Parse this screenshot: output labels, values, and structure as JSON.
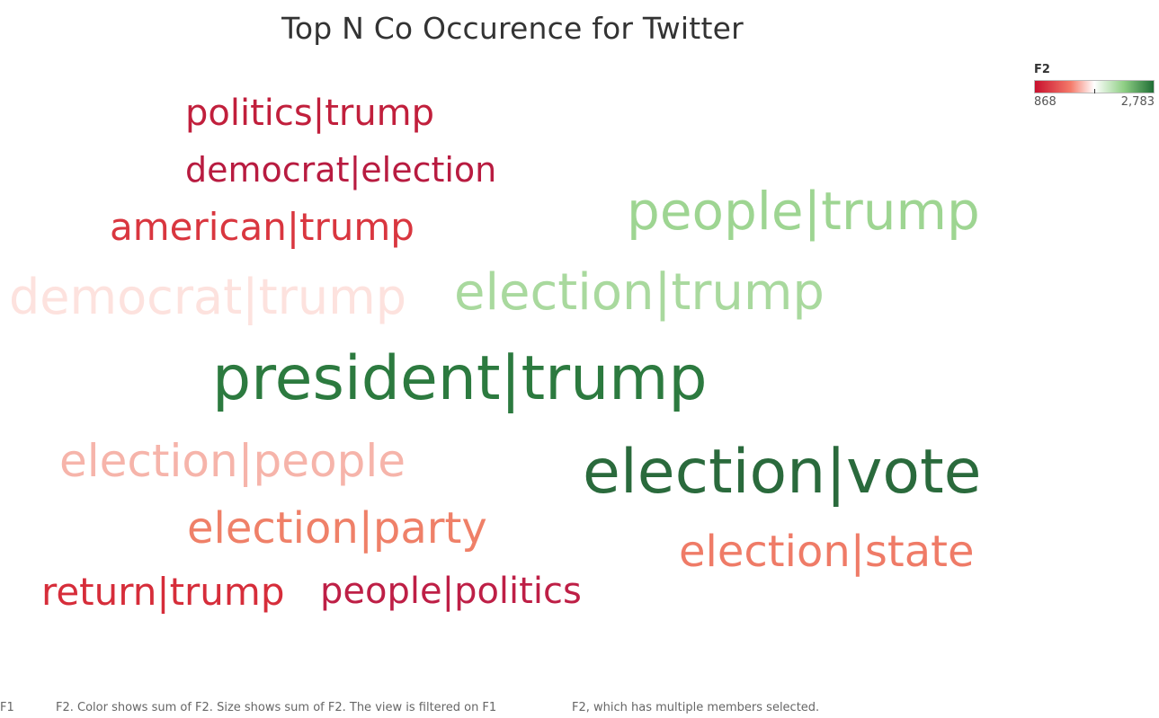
{
  "title": "Top N Co Occurence for Twitter",
  "legend": {
    "title": "F2",
    "min_label": "868",
    "max_label": "2,783"
  },
  "footer": {
    "part1": "F1",
    "part2": "F2.  Color shows sum of F2.  Size shows sum of F2. The view is filtered on F1",
    "part3": "F2, which has multiple members selected."
  },
  "colors": {
    "low": "#c8102e",
    "mid": "#ffffff",
    "high": "#1f6e35"
  },
  "chart_data": {
    "type": "table",
    "encoding": "word cloud; color and size = sum of F2",
    "color_range": [
      868,
      2783
    ],
    "words": [
      {
        "label": "politics|trump",
        "value": 980
      },
      {
        "label": "democrat|election",
        "value": 900
      },
      {
        "label": "american|trump",
        "value": 1150
      },
      {
        "label": "people|trump",
        "value": 2250
      },
      {
        "label": "democrat|trump",
        "value": 1800
      },
      {
        "label": "election|trump",
        "value": 2200
      },
      {
        "label": "president|trump",
        "value": 2700
      },
      {
        "label": "election|people",
        "value": 1560
      },
      {
        "label": "election|vote",
        "value": 2783
      },
      {
        "label": "election|party",
        "value": 1350
      },
      {
        "label": "election|state",
        "value": 1400
      },
      {
        "label": "return|trump",
        "value": 1050
      },
      {
        "label": "people|politics",
        "value": 868
      }
    ]
  }
}
